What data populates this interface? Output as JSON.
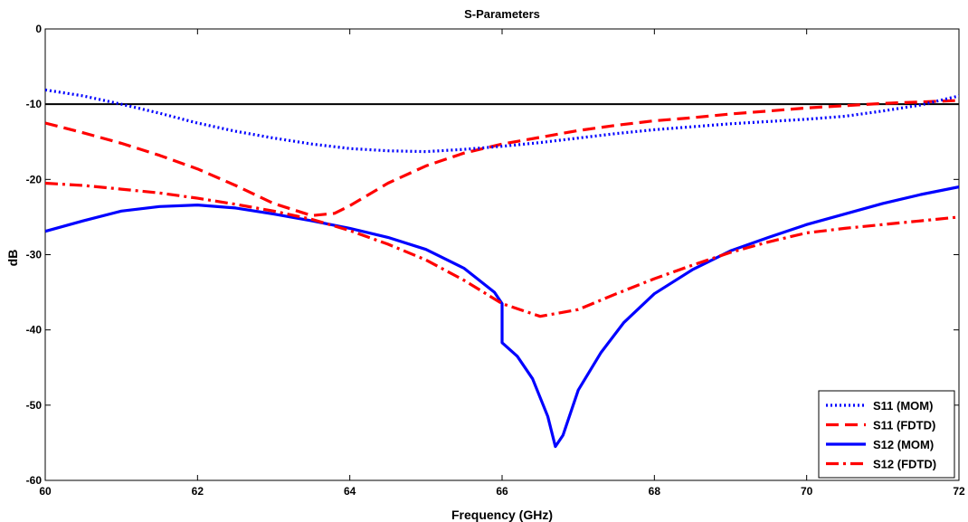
{
  "chart_data": {
    "type": "line",
    "title": "S-Parameters",
    "xlabel": "Frequency (GHz)",
    "ylabel": "dB",
    "xlim": [
      60,
      72
    ],
    "ylim": [
      -60,
      0
    ],
    "xticks": [
      60,
      62,
      64,
      66,
      68,
      70,
      72
    ],
    "yticks": [
      0,
      -10,
      -20,
      -30,
      -40,
      -50,
      -60
    ],
    "grid": false,
    "legend_position": "bottom-right",
    "reference_line": {
      "y": -10,
      "color": "#000000"
    },
    "series": [
      {
        "name": "S11 (MOM)",
        "color": "#0000ff",
        "style": "dotted",
        "x": [
          60,
          60.5,
          61,
          61.5,
          62,
          62.5,
          63,
          63.5,
          64,
          64.5,
          65,
          65.5,
          66,
          66.5,
          67,
          67.5,
          68,
          68.5,
          69,
          69.5,
          70,
          70.5,
          71,
          71.5,
          72
        ],
        "y": [
          -8.1,
          -8.9,
          -10.0,
          -11.2,
          -12.5,
          -13.6,
          -14.5,
          -15.3,
          -15.9,
          -16.2,
          -16.3,
          -16.0,
          -15.6,
          -15.1,
          -14.5,
          -13.9,
          -13.4,
          -13.0,
          -12.6,
          -12.3,
          -12.0,
          -11.6,
          -10.9,
          -10.1,
          -8.9
        ]
      },
      {
        "name": "S11 (FDTD)",
        "color": "#ff0000",
        "style": "dashed",
        "x": [
          60,
          60.5,
          61,
          61.5,
          62,
          62.5,
          63,
          63.5,
          63.8,
          64,
          64.5,
          65,
          65.5,
          66,
          66.5,
          67,
          67.5,
          68,
          68.5,
          69,
          69.5,
          70,
          70.5,
          71,
          71.5,
          72
        ],
        "y": [
          -12.5,
          -13.8,
          -15.2,
          -16.8,
          -18.6,
          -20.8,
          -23.2,
          -24.8,
          -24.5,
          -23.5,
          -20.5,
          -18.2,
          -16.5,
          -15.3,
          -14.4,
          -13.5,
          -12.8,
          -12.2,
          -11.8,
          -11.3,
          -10.9,
          -10.5,
          -10.2,
          -9.9,
          -9.7,
          -9.5
        ]
      },
      {
        "name": "S12 (MOM)",
        "color": "#0000ff",
        "style": "solid",
        "x": [
          60,
          60.5,
          61,
          61.5,
          62,
          62.5,
          63,
          63.5,
          64,
          64.5,
          65,
          65.5,
          65.9,
          66.0,
          66.0,
          66.2,
          66.4,
          66.6,
          66.7,
          66.8,
          67.0,
          67.3,
          67.6,
          68,
          68.5,
          69,
          69.5,
          70,
          70.5,
          71,
          71.5,
          72
        ],
        "y": [
          -26.9,
          -25.5,
          -24.2,
          -23.6,
          -23.4,
          -23.8,
          -24.6,
          -25.5,
          -26.5,
          -27.7,
          -29.3,
          -31.8,
          -35.0,
          -36.5,
          -41.7,
          -43.5,
          -46.5,
          -51.5,
          -55.5,
          -54.0,
          -48.0,
          -43.0,
          -39.0,
          -35.2,
          -32.0,
          -29.5,
          -27.7,
          -26.0,
          -24.6,
          -23.2,
          -22.0,
          -21.0
        ]
      },
      {
        "name": "S12 (FDTD)",
        "color": "#ff0000",
        "style": "dash-dot",
        "x": [
          60,
          60.5,
          61,
          61.5,
          62,
          62.5,
          63,
          63.5,
          64,
          64.5,
          65,
          65.5,
          66,
          66.5,
          67,
          67.5,
          68,
          68.5,
          69,
          69.5,
          70,
          70.5,
          71,
          71.5,
          72
        ],
        "y": [
          -20.5,
          -20.8,
          -21.3,
          -21.8,
          -22.5,
          -23.3,
          -24.2,
          -25.3,
          -26.8,
          -28.6,
          -30.7,
          -33.4,
          -36.5,
          -38.2,
          -37.3,
          -35.2,
          -33.2,
          -31.4,
          -29.7,
          -28.3,
          -27.1,
          -26.5,
          -26.0,
          -25.5,
          -25.0
        ]
      }
    ]
  }
}
